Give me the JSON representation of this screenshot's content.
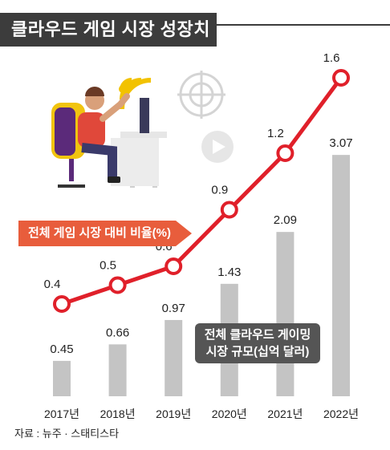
{
  "title": "클라우드 게임 시장 성장치",
  "source": "자료 : 뉴주 · 스태티스타",
  "chart_data": {
    "type": "bar",
    "categories": [
      "2017년",
      "2018년",
      "2019년",
      "2020년",
      "2021년",
      "2022년"
    ],
    "series": [
      {
        "name": "전체 클라우드 게이밍 시장 규모(십억 달러)",
        "type": "bar",
        "values": [
          0.45,
          0.66,
          0.97,
          1.43,
          2.09,
          3.07
        ]
      },
      {
        "name": "전체 게임 시장 대비 비율(%)",
        "type": "line",
        "values": [
          0.4,
          0.5,
          0.6,
          0.9,
          1.2,
          1.6
        ]
      }
    ],
    "legend": {
      "line": "전체 게임 시장 대비 비율(%)",
      "bar_line1": "전체 클라우드 게이밍",
      "bar_line2": "시장 규모(십억 달러)"
    },
    "colors": {
      "bar": "#c4c4c4",
      "line": "#e0202a",
      "line_label_bg": "#e85d3c",
      "bar_label_bg": "#555555"
    },
    "grid": false
  }
}
